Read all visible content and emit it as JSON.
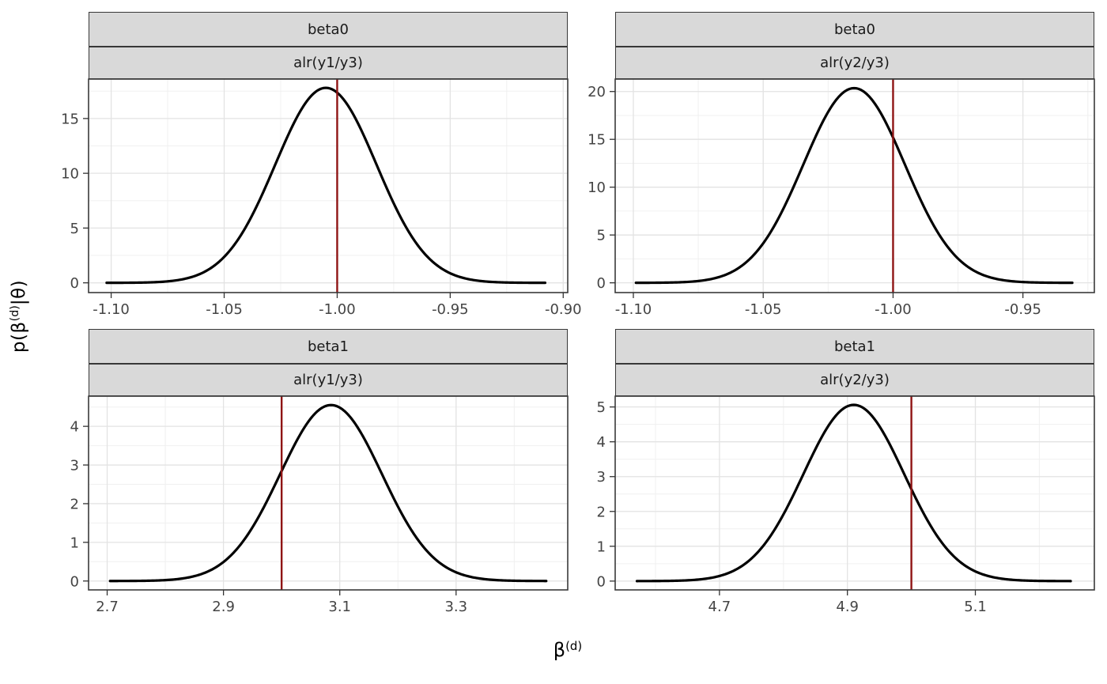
{
  "figure": {
    "y_axis_title": {
      "pre": "p(β",
      "sup": "(d)",
      "post": "|θ)"
    },
    "x_axis_title": {
      "base": "β",
      "sup": "(d)"
    },
    "colors": {
      "background": "#FFFFFF",
      "curve": "#000000",
      "reference_line": "#8F1414",
      "strip_fill": "#D9D9D9",
      "strip_border": "#383838",
      "panel_border": "#3A3A3A",
      "grid_major": "#E3E3E3",
      "grid_minor": "#F0F0F0",
      "axis_text": "#444444",
      "tick": "#333333"
    }
  },
  "chart_data": [
    {
      "panel": "top-left",
      "type": "line",
      "strip_outer": "beta0",
      "strip_inner": "alr(y1/y3)",
      "curve": {
        "kind": "gaussian_density",
        "mean": -1.005,
        "sd": 0.0224,
        "peak": 17.8,
        "x_start": -1.102,
        "x_end": -0.908
      },
      "vline": -1.0,
      "x": {
        "domain": [
          -1.11,
          -0.898
        ],
        "ticks": [
          -1.1,
          -1.05,
          -1.0,
          -0.95,
          -0.9
        ],
        "tick_labels": [
          "-1.10",
          "-1.05",
          "-1.00",
          "-0.95",
          "-0.90"
        ],
        "minor": [
          -1.075,
          -1.025,
          -0.975,
          -0.925
        ]
      },
      "y": {
        "domain": [
          -0.89,
          18.6
        ],
        "ticks": [
          0,
          5,
          10,
          15
        ],
        "tick_labels": [
          "0",
          "5",
          "10",
          "15"
        ],
        "minor": [
          2.5,
          7.5,
          12.5,
          17.5
        ]
      }
    },
    {
      "panel": "top-right",
      "type": "line",
      "strip_outer": "beta0",
      "strip_inner": "alr(y2/y3)",
      "curve": {
        "kind": "gaussian_density",
        "mean": -1.015,
        "sd": 0.0196,
        "peak": 20.35,
        "x_start": -1.099,
        "x_end": -0.931
      },
      "vline": -1.0,
      "x": {
        "domain": [
          -1.107,
          -0.9225
        ],
        "ticks": [
          -1.1,
          -1.05,
          -1.0,
          -0.95
        ],
        "tick_labels": [
          "-1.10",
          "-1.05",
          "-1.00",
          "-0.95"
        ],
        "minor": [
          -1.075,
          -1.025,
          -0.975,
          -0.925
        ]
      },
      "y": {
        "domain": [
          -1.02,
          21.3
        ],
        "ticks": [
          0,
          5,
          10,
          15,
          20
        ],
        "tick_labels": [
          "0",
          "5",
          "10",
          "15",
          "20"
        ],
        "minor": [
          2.5,
          7.5,
          12.5,
          17.5
        ]
      }
    },
    {
      "panel": "bottom-left",
      "type": "line",
      "strip_outer": "beta1",
      "strip_inner": "alr(y1/y3)",
      "curve": {
        "kind": "gaussian_density",
        "mean": 3.085,
        "sd": 0.0877,
        "peak": 4.55,
        "x_start": 2.705,
        "x_end": 3.455
      },
      "vline": 3.0,
      "x": {
        "domain": [
          2.668,
          3.492
        ],
        "ticks": [
          2.7,
          2.9,
          3.1,
          3.3
        ],
        "tick_labels": [
          "2.7",
          "2.9",
          "3.1",
          "3.3"
        ],
        "minor": [
          2.8,
          3.0,
          3.2,
          3.4
        ]
      },
      "y": {
        "domain": [
          -0.23,
          4.78
        ],
        "ticks": [
          0,
          1,
          2,
          3,
          4
        ],
        "tick_labels": [
          "0",
          "1",
          "2",
          "3",
          "4"
        ],
        "minor": [
          0.5,
          1.5,
          2.5,
          3.5,
          4.5
        ]
      }
    },
    {
      "panel": "bottom-right",
      "type": "line",
      "strip_outer": "beta1",
      "strip_inner": "alr(y2/y3)",
      "curve": {
        "kind": "gaussian_density",
        "mean": 4.91,
        "sd": 0.0789,
        "peak": 5.06,
        "x_start": 4.571,
        "x_end": 5.249
      },
      "vline": 5.0,
      "x": {
        "domain": [
          4.537,
          5.286
        ],
        "ticks": [
          4.7,
          4.9,
          5.1
        ],
        "tick_labels": [
          "4.7",
          "4.9",
          "5.1"
        ],
        "minor": [
          4.6,
          4.8,
          5.0,
          5.2
        ]
      },
      "y": {
        "domain": [
          -0.253,
          5.31
        ],
        "ticks": [
          0,
          1,
          2,
          3,
          4,
          5
        ],
        "tick_labels": [
          "0",
          "1",
          "2",
          "3",
          "4",
          "5"
        ],
        "minor": [
          0.5,
          1.5,
          2.5,
          3.5,
          4.5
        ]
      }
    }
  ]
}
